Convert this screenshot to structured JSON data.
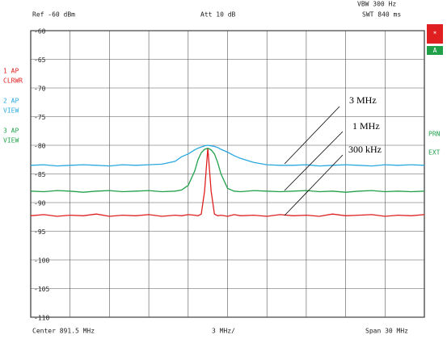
{
  "chart_data": {
    "type": "line",
    "header": {
      "ref": "Ref -60 dBm",
      "att": "Att 10 dB",
      "swt": "SWT 840 ms",
      "vbw": "VBW 300 Hz"
    },
    "footer": {
      "center": "Center 891.5 MHz",
      "per_div": "3 MHz/",
      "span": "Span 30 MHz"
    },
    "side_labels": [
      "PRN",
      "EXT"
    ],
    "markers": [
      "*",
      "A"
    ],
    "x": [
      876.5,
      877.5,
      878.5,
      879.5,
      880.5,
      881.5,
      882.5,
      883.5,
      884.5,
      885.5,
      886.5,
      887.5,
      888,
      888.5,
      889,
      889.25,
      889.5,
      889.75,
      890,
      890.25,
      890.5,
      890.75,
      891,
      891.5,
      892,
      892.5,
      893.5,
      894.5,
      895.5,
      896.5,
      897.5,
      898.5,
      899.5,
      900.5,
      901.5,
      902.5,
      903.5,
      904.5,
      905.5,
      906.5
    ],
    "xlim": [
      876.5,
      906.5
    ],
    "ylim": [
      -110,
      -60
    ],
    "yticks": [
      -60,
      -65,
      -70,
      -75,
      -80,
      -85,
      -90,
      -95,
      -100,
      -105,
      -110
    ],
    "grid": true,
    "series": [
      {
        "name": "1 AP",
        "mode": "CLRWR",
        "color": "#e02020",
        "values": [
          -92.3,
          -92.1,
          -92.4,
          -92.2,
          -92.3,
          -92.0,
          -92.4,
          -92.2,
          -92.3,
          -92.1,
          -92.4,
          -92.2,
          -92.3,
          -92.1,
          -92.2,
          -92.3,
          -92.0,
          -88,
          -80.5,
          -88,
          -92.0,
          -92.3,
          -92.2,
          -92.4,
          -92.1,
          -92.3,
          -92.2,
          -92.4,
          -92.1,
          -92.3,
          -92.2,
          -92.4,
          -92.0,
          -92.3,
          -92.2,
          -92.1,
          -92.4,
          -92.2,
          -92.3,
          -92.1
        ]
      },
      {
        "name": "2 AP",
        "mode": "VIEW",
        "color": "#29a8e0",
        "values": [
          -83.5,
          -83.4,
          -83.6,
          -83.5,
          -83.4,
          -83.5,
          -83.6,
          -83.4,
          -83.5,
          -83.4,
          -83.3,
          -82.8,
          -82.0,
          -81.5,
          -80.8,
          -80.5,
          -80.3,
          -80.1,
          -80.0,
          -80.1,
          -80.2,
          -80.4,
          -80.7,
          -81.2,
          -81.8,
          -82.3,
          -83.0,
          -83.4,
          -83.5,
          -83.5,
          -83.4,
          -83.6,
          -83.5,
          -83.4,
          -83.5,
          -83.6,
          -83.4,
          -83.5,
          -83.4,
          -83.5
        ]
      },
      {
        "name": "3 AP",
        "mode": "VIEW",
        "color": "#21a04a",
        "values": [
          -88.0,
          -88.1,
          -87.9,
          -88.0,
          -88.2,
          -88.0,
          -87.9,
          -88.1,
          -88.0,
          -87.9,
          -88.1,
          -88.0,
          -87.8,
          -87.0,
          -84.5,
          -82.5,
          -81.3,
          -80.7,
          -80.5,
          -80.8,
          -81.5,
          -83.0,
          -85.0,
          -87.5,
          -88.0,
          -88.1,
          -87.9,
          -88.0,
          -88.1,
          -88.0,
          -87.9,
          -88.1,
          -88.0,
          -88.2,
          -88.0,
          -87.9,
          -88.1,
          -88.0,
          -88.1,
          -88.0
        ]
      }
    ],
    "annotations": [
      "3 MHz",
      "1 MHz",
      "300 kHz"
    ]
  }
}
